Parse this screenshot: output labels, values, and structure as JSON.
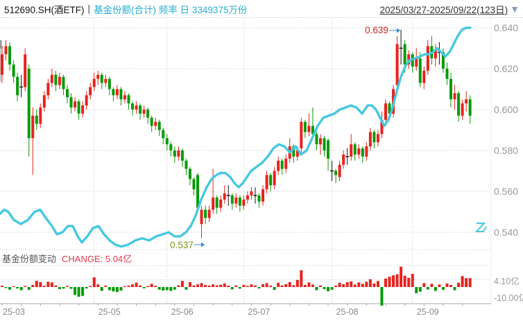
{
  "header": {
    "symbol": "512690.SH(酒ETF)",
    "separator": "|",
    "series_label": "基金份额(合计) 频率 日 3349375万份",
    "date_range": "2025/03/27-2025/09/22(123日)",
    "dropdown_icon": "▼"
  },
  "subchart": {
    "title": "基金份额变动",
    "change_label": "CHANGE: 5.04亿"
  },
  "colors": {
    "up": "#e8221e",
    "down": "#089b08",
    "doji": "#111111",
    "share_line": "#45c8e0",
    "grid": "#c8c8c8",
    "axis_text": "#999999",
    "x_axis_text": "#8a8a8a",
    "axis_line": "#aaaaaa",
    "annotation_high": "#c42a21",
    "annotation_low": "#7f9416",
    "annotation_arrow": "#3388cc",
    "clipped": "#999999"
  },
  "chart_data": {
    "type": "candlestick+line+bar",
    "title": "512690.SH(酒ETF) 基金份额(合计)",
    "date_range": {
      "start": "2025/03/27",
      "end": "2025/09/22",
      "trading_days": 123
    },
    "price_axis": {
      "ticks": [
        0.64,
        0.62,
        0.6,
        0.58,
        0.56,
        0.54
      ],
      "ylim": [
        0.533,
        0.643
      ]
    },
    "x_axis": {
      "labels": [
        "25-03",
        "25-05",
        "25-06",
        "25-07",
        "25-08",
        "25-09"
      ],
      "month_ticks": [
        {
          "label": "25-03",
          "index": 0
        },
        {
          "label": "25-05",
          "index": 24
        },
        {
          "label": "25-06",
          "index": 43
        },
        {
          "label": "25-07",
          "index": 63
        },
        {
          "label": "25-08",
          "index": 86
        },
        {
          "label": "25-09",
          "index": 107
        }
      ]
    },
    "annotations": {
      "high": {
        "label": "0.639",
        "value": 0.639
      },
      "low": {
        "label": "0.537",
        "value": 0.537
      }
    },
    "candles": [
      [
        0.617,
        0.631,
        0.613,
        0.627
      ],
      [
        0.627,
        0.634,
        0.624,
        0.631
      ],
      [
        0.631,
        0.633,
        0.619,
        0.622
      ],
      [
        0.622,
        0.624,
        0.613,
        0.616
      ],
      [
        0.616,
        0.618,
        0.604,
        0.607
      ],
      [
        0.611,
        0.617,
        0.606,
        0.611
      ],
      [
        0.611,
        0.63,
        0.609,
        0.627
      ],
      [
        0.62,
        0.622,
        0.577,
        0.586
      ],
      [
        0.586,
        0.601,
        0.568,
        0.597
      ],
      [
        0.597,
        0.6,
        0.59,
        0.593
      ],
      [
        0.593,
        0.603,
        0.591,
        0.601
      ],
      [
        0.601,
        0.609,
        0.599,
        0.607
      ],
      [
        0.607,
        0.615,
        0.605,
        0.613
      ],
      [
        0.613,
        0.62,
        0.611,
        0.617
      ],
      [
        0.617,
        0.619,
        0.609,
        0.612
      ],
      [
        0.612,
        0.618,
        0.61,
        0.616
      ],
      [
        0.616,
        0.617,
        0.607,
        0.61
      ],
      [
        0.61,
        0.612,
        0.603,
        0.606
      ],
      [
        0.606,
        0.608,
        0.598,
        0.601
      ],
      [
        0.601,
        0.606,
        0.599,
        0.604
      ],
      [
        0.604,
        0.605,
        0.595,
        0.598
      ],
      [
        0.598,
        0.604,
        0.596,
        0.602
      ],
      [
        0.602,
        0.609,
        0.6,
        0.607
      ],
      [
        0.607,
        0.613,
        0.605,
        0.611
      ],
      [
        0.611,
        0.618,
        0.609,
        0.615
      ],
      [
        0.615,
        0.619,
        0.612,
        0.617
      ],
      [
        0.617,
        0.618,
        0.61,
        0.613
      ],
      [
        0.613,
        0.617,
        0.611,
        0.615
      ],
      [
        0.615,
        0.616,
        0.607,
        0.61
      ],
      [
        0.61,
        0.611,
        0.604,
        0.607
      ],
      [
        0.607,
        0.612,
        0.605,
        0.61
      ],
      [
        0.61,
        0.611,
        0.602,
        0.605
      ],
      [
        0.605,
        0.609,
        0.603,
        0.607
      ],
      [
        0.607,
        0.608,
        0.6,
        0.603
      ],
      [
        0.603,
        0.604,
        0.597,
        0.6
      ],
      [
        0.6,
        0.604,
        0.598,
        0.602
      ],
      [
        0.602,
        0.603,
        0.595,
        0.598
      ],
      [
        0.598,
        0.602,
        0.596,
        0.6
      ],
      [
        0.6,
        0.601,
        0.593,
        0.596
      ],
      [
        0.596,
        0.597,
        0.589,
        0.592
      ],
      [
        0.592,
        0.596,
        0.59,
        0.594
      ],
      [
        0.594,
        0.595,
        0.587,
        0.59
      ],
      [
        0.59,
        0.591,
        0.583,
        0.586
      ],
      [
        0.586,
        0.588,
        0.58,
        0.583
      ],
      [
        0.583,
        0.584,
        0.577,
        0.58
      ],
      [
        0.58,
        0.582,
        0.574,
        0.577
      ],
      [
        0.577,
        0.582,
        0.575,
        0.58
      ],
      [
        0.58,
        0.581,
        0.572,
        0.575
      ],
      [
        0.575,
        0.576,
        0.568,
        0.571
      ],
      [
        0.571,
        0.572,
        0.563,
        0.566
      ],
      [
        0.566,
        0.567,
        0.558,
        0.561
      ],
      [
        0.568,
        0.569,
        0.55,
        0.552
      ],
      [
        0.544,
        0.553,
        0.537,
        0.551
      ],
      [
        0.551,
        0.553,
        0.544,
        0.547
      ],
      [
        0.547,
        0.553,
        0.545,
        0.551
      ],
      [
        0.551,
        0.571,
        0.549,
        0.557
      ],
      [
        0.557,
        0.558,
        0.549,
        0.552
      ],
      [
        0.552,
        0.558,
        0.55,
        0.556
      ],
      [
        0.556,
        0.563,
        0.554,
        0.559
      ],
      [
        0.558,
        0.563,
        0.553,
        0.558
      ],
      [
        0.558,
        0.559,
        0.551,
        0.554
      ],
      [
        0.554,
        0.559,
        0.552,
        0.557
      ],
      [
        0.557,
        0.558,
        0.55,
        0.553
      ],
      [
        0.553,
        0.558,
        0.551,
        0.556
      ],
      [
        0.556,
        0.56,
        0.554,
        0.558
      ],
      [
        0.558,
        0.562,
        0.556,
        0.56
      ],
      [
        0.558,
        0.562,
        0.554,
        0.558
      ],
      [
        0.558,
        0.559,
        0.552,
        0.555
      ],
      [
        0.555,
        0.563,
        0.553,
        0.561
      ],
      [
        0.561,
        0.57,
        0.559,
        0.568
      ],
      [
        0.568,
        0.569,
        0.56,
        0.563
      ],
      [
        0.563,
        0.572,
        0.561,
        0.57
      ],
      [
        0.57,
        0.577,
        0.568,
        0.575
      ],
      [
        0.575,
        0.576,
        0.568,
        0.571
      ],
      [
        0.571,
        0.578,
        0.569,
        0.576
      ],
      [
        0.576,
        0.586,
        0.574,
        0.582
      ],
      [
        0.582,
        0.583,
        0.574,
        0.577
      ],
      [
        0.577,
        0.582,
        0.575,
        0.58
      ],
      [
        0.581,
        0.596,
        0.579,
        0.594
      ],
      [
        0.594,
        0.595,
        0.586,
        0.589
      ],
      [
        0.589,
        0.598,
        0.587,
        0.592
      ],
      [
        0.592,
        0.601,
        0.586,
        0.588
      ],
      [
        0.588,
        0.589,
        0.58,
        0.583
      ],
      [
        0.583,
        0.588,
        0.578,
        0.586
      ],
      [
        0.586,
        0.587,
        0.577,
        0.58
      ],
      [
        0.585,
        0.586,
        0.57,
        0.576
      ],
      [
        0.57,
        0.575,
        0.565,
        0.57
      ],
      [
        0.57,
        0.571,
        0.564,
        0.568
      ],
      [
        0.567,
        0.575,
        0.565,
        0.573
      ],
      [
        0.573,
        0.58,
        0.571,
        0.578
      ],
      [
        0.577,
        0.581,
        0.573,
        0.577
      ],
      [
        0.577,
        0.588,
        0.575,
        0.583
      ],
      [
        0.583,
        0.584,
        0.575,
        0.578
      ],
      [
        0.578,
        0.583,
        0.576,
        0.581
      ],
      [
        0.581,
        0.582,
        0.574,
        0.577
      ],
      [
        0.577,
        0.584,
        0.575,
        0.582
      ],
      [
        0.582,
        0.591,
        0.58,
        0.589
      ],
      [
        0.589,
        0.59,
        0.581,
        0.584
      ],
      [
        0.584,
        0.59,
        0.582,
        0.588
      ],
      [
        0.588,
        0.599,
        0.586,
        0.595
      ],
      [
        0.595,
        0.605,
        0.593,
        0.603
      ],
      [
        0.603,
        0.604,
        0.595,
        0.598
      ],
      [
        0.598,
        0.612,
        0.596,
        0.61
      ],
      [
        0.612,
        0.636,
        0.61,
        0.632
      ],
      [
        0.63,
        0.639,
        0.622,
        0.63
      ],
      [
        0.632,
        0.634,
        0.618,
        0.622
      ],
      [
        0.622,
        0.629,
        0.62,
        0.627
      ],
      [
        0.627,
        0.628,
        0.618,
        0.621
      ],
      [
        0.621,
        0.63,
        0.619,
        0.625
      ],
      [
        0.625,
        0.628,
        0.611,
        0.613
      ],
      [
        0.613,
        0.621,
        0.61,
        0.619
      ],
      [
        0.619,
        0.634,
        0.617,
        0.631
      ],
      [
        0.631,
        0.636,
        0.622,
        0.625
      ],
      [
        0.625,
        0.632,
        0.621,
        0.629
      ],
      [
        0.628,
        0.633,
        0.622,
        0.628
      ],
      [
        0.628,
        0.63,
        0.618,
        0.62
      ],
      [
        0.62,
        0.623,
        0.612,
        0.615
      ],
      [
        0.615,
        0.618,
        0.601,
        0.605
      ],
      [
        0.605,
        0.612,
        0.6,
        0.608
      ],
      [
        0.608,
        0.609,
        0.594,
        0.597
      ],
      [
        0.597,
        0.605,
        0.595,
        0.603
      ],
      [
        0.603,
        0.609,
        0.599,
        0.605
      ],
      [
        0.605,
        0.607,
        0.593,
        0.597
      ]
    ],
    "share_line": {
      "name": "基金份额(合计)",
      "unit": "万份",
      "latest": 3349375,
      "points_price_scale": [
        [
          0,
          0.549
        ],
        [
          6,
          0.551
        ],
        [
          12,
          0.55
        ],
        [
          20,
          0.546
        ],
        [
          30,
          0.544
        ],
        [
          40,
          0.546
        ],
        [
          50,
          0.55
        ],
        [
          58,
          0.551
        ],
        [
          66,
          0.547
        ],
        [
          75,
          0.543
        ],
        [
          82,
          0.539
        ],
        [
          90,
          0.54
        ],
        [
          98,
          0.543
        ],
        [
          105,
          0.543
        ],
        [
          112,
          0.538
        ],
        [
          118,
          0.535
        ],
        [
          126,
          0.538
        ],
        [
          134,
          0.542
        ],
        [
          142,
          0.543
        ],
        [
          150,
          0.539
        ],
        [
          158,
          0.536
        ],
        [
          166,
          0.534
        ],
        [
          175,
          0.533
        ],
        [
          185,
          0.534
        ],
        [
          195,
          0.536
        ],
        [
          205,
          0.537
        ],
        [
          215,
          0.536
        ],
        [
          225,
          0.538
        ],
        [
          235,
          0.539
        ],
        [
          243,
          0.54
        ],
        [
          252,
          0.538
        ],
        [
          260,
          0.538
        ],
        [
          268,
          0.54
        ],
        [
          275,
          0.543
        ],
        [
          282,
          0.548
        ],
        [
          290,
          0.556
        ],
        [
          298,
          0.562
        ],
        [
          305,
          0.566
        ],
        [
          312,
          0.568
        ],
        [
          318,
          0.569
        ],
        [
          325,
          0.569
        ],
        [
          332,
          0.567
        ],
        [
          338,
          0.564
        ],
        [
          344,
          0.562
        ],
        [
          350,
          0.564
        ],
        [
          356,
          0.567
        ],
        [
          362,
          0.57
        ],
        [
          370,
          0.572
        ],
        [
          378,
          0.574
        ],
        [
          386,
          0.577
        ],
        [
          394,
          0.581
        ],
        [
          402,
          0.583
        ],
        [
          410,
          0.582
        ],
        [
          418,
          0.579
        ],
        [
          426,
          0.582
        ],
        [
          434,
          0.578
        ],
        [
          442,
          0.58
        ],
        [
          450,
          0.586
        ],
        [
          458,
          0.592
        ],
        [
          466,
          0.596
        ],
        [
          474,
          0.597
        ],
        [
          482,
          0.598
        ],
        [
          490,
          0.6
        ],
        [
          498,
          0.601
        ],
        [
          506,
          0.602
        ],
        [
          514,
          0.601
        ],
        [
          522,
          0.598
        ],
        [
          530,
          0.602
        ],
        [
          536,
          0.602
        ],
        [
          542,
          0.6
        ],
        [
          548,
          0.596
        ],
        [
          554,
          0.592
        ],
        [
          560,
          0.595
        ],
        [
          566,
          0.601
        ],
        [
          572,
          0.609
        ],
        [
          578,
          0.616
        ],
        [
          584,
          0.621
        ],
        [
          590,
          0.624
        ],
        [
          598,
          0.625
        ],
        [
          606,
          0.626
        ],
        [
          612,
          0.627
        ],
        [
          618,
          0.627
        ],
        [
          624,
          0.628
        ],
        [
          630,
          0.63
        ],
        [
          636,
          0.628
        ],
        [
          642,
          0.626
        ],
        [
          648,
          0.628
        ],
        [
          654,
          0.632
        ],
        [
          660,
          0.636
        ],
        [
          666,
          0.639
        ],
        [
          672,
          0.64
        ],
        [
          678,
          0.64
        ]
      ]
    },
    "share_change": {
      "name": "基金份额变动",
      "unit": "亿",
      "latest": 5.04,
      "axis_labels": [
        "4.10亿",
        "-10.00亿"
      ],
      "gridline_value": 4.1,
      "values": [
        0.8,
        -0.6,
        -1.5,
        0.5,
        -0.8,
        -1.8,
        0.6,
        -1.6,
        1.2,
        3.5,
        2.8,
        0.7,
        3.0,
        2.6,
        0.9,
        -1.2,
        -0.9,
        0.6,
        -1.0,
        -4.5,
        -5.5,
        -5.0,
        -0.8,
        0.6,
        5.5,
        1.5,
        -2.2,
        0.8,
        -1.8,
        -2.5,
        -2.8,
        -2.0,
        0.5,
        0.8,
        1.5,
        2.5,
        0.9,
        -0.7,
        0.6,
        1.8,
        0.7,
        -1.5,
        -2.0,
        -1.8,
        -2.2,
        -1.5,
        1.0,
        3.5,
        -1.5,
        2.8,
        0.9,
        1.5,
        2.2,
        1.2,
        0.8,
        1.5,
        0.9,
        1.3,
        2.0,
        0.8,
        -1.3,
        0.9,
        -0.9,
        1.2,
        0.6,
        1.5,
        0.9,
        -0.8,
        1.6,
        2.2,
        0.8,
        -1.6,
        2.4,
        0.9,
        1.6,
        2.8,
        1.0,
        4.0,
        9.5,
        1.2,
        2.6,
        1.4,
        -1.8,
        0.9,
        -1.2,
        -2.4,
        -1.5,
        0.8,
        2.4,
        1.6,
        2.8,
        3.2,
        1.4,
        2.6,
        1.8,
        3.0,
        4.4,
        2.0,
        3.4,
        -10.5,
        4.8,
        5.8,
        6.6,
        7.2,
        11.5,
        6.4,
        5.2,
        7.4,
        -3.5,
        -2.6,
        2.2,
        -1.4,
        1.8,
        -2.2,
        1.4,
        -1.6,
        2.0,
        1.2,
        -1.8,
        2.4,
        6.2,
        5.0,
        5.04
      ]
    }
  }
}
